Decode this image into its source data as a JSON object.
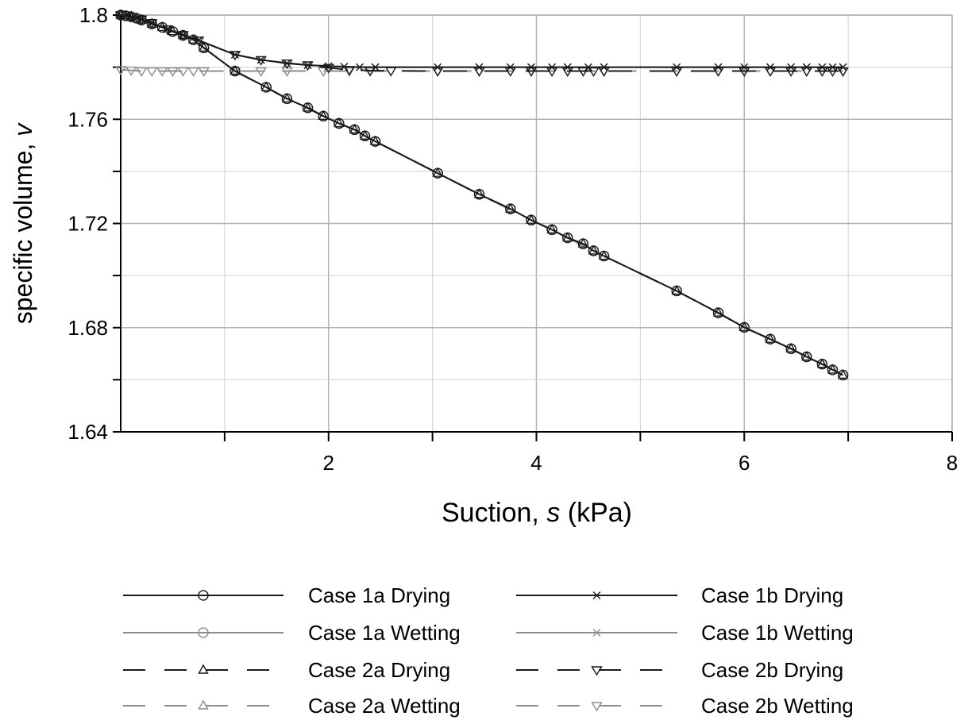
{
  "chart_data": {
    "type": "line",
    "xlabel_prefix": "Suction, ",
    "xlabel_symbol": "s",
    "xlabel_suffix": " (kPa)",
    "ylabel_prefix": "specific volume, ",
    "ylabel_symbol": "v",
    "xlim": [
      0,
      8
    ],
    "ylim": [
      1.64,
      1.8
    ],
    "x_ticks": [
      2,
      4,
      6,
      8
    ],
    "x_minor_ticks": [
      1,
      3,
      5,
      7
    ],
    "y_ticks": [
      1.64,
      1.68,
      1.72,
      1.76,
      1.8
    ],
    "y_minor_ticks": [
      1.66,
      1.7,
      1.74,
      1.78
    ],
    "grid": true,
    "legend_position": "bottom",
    "colors": {
      "dark": "#1a1a1a",
      "light": "#8c8c8c",
      "axis": "#000000",
      "grid": "#b3b3b3"
    },
    "series": [
      {
        "name": "Case 1a Drying",
        "color": "dark",
        "dash": "solid",
        "marker": "circle",
        "points": [
          [
            0,
            1.8
          ],
          [
            0.05,
            1.7997
          ],
          [
            0.1,
            1.7994
          ],
          [
            0.15,
            1.7988
          ],
          [
            0.2,
            1.7981
          ],
          [
            0.3,
            1.7966
          ],
          [
            0.4,
            1.7953
          ],
          [
            0.5,
            1.7937
          ],
          [
            0.6,
            1.7922
          ],
          [
            0.7,
            1.7905
          ],
          [
            0.8,
            1.7874
          ],
          [
            1.1,
            1.7785
          ],
          [
            1.4,
            1.7723
          ],
          [
            1.6,
            1.7679
          ],
          [
            1.8,
            1.7644
          ],
          [
            1.95,
            1.7612
          ],
          [
            2.1,
            1.7584
          ],
          [
            2.25,
            1.756
          ],
          [
            2.35,
            1.7536
          ],
          [
            2.45,
            1.7515
          ],
          [
            3.05,
            1.7393
          ],
          [
            3.45,
            1.7312
          ],
          [
            3.75,
            1.7256
          ],
          [
            3.95,
            1.7213
          ],
          [
            4.15,
            1.7176
          ],
          [
            4.3,
            1.7145
          ],
          [
            4.45,
            1.7122
          ],
          [
            4.55,
            1.7095
          ],
          [
            4.65,
            1.7075
          ],
          [
            5.35,
            1.6941
          ],
          [
            5.75,
            1.6857
          ],
          [
            6.0,
            1.6801
          ],
          [
            6.25,
            1.6756
          ],
          [
            6.45,
            1.6719
          ],
          [
            6.6,
            1.6688
          ],
          [
            6.75,
            1.666
          ],
          [
            6.85,
            1.6638
          ],
          [
            6.95,
            1.6618
          ]
        ]
      },
      {
        "name": "Case 1a Wetting",
        "color": "light",
        "dash": "solid",
        "marker": "circle",
        "points": [
          [
            6.95,
            1.6618
          ],
          [
            6.85,
            1.6638
          ],
          [
            6.75,
            1.666
          ],
          [
            6.6,
            1.6688
          ],
          [
            6.45,
            1.6719
          ],
          [
            6.25,
            1.6756
          ],
          [
            6.0,
            1.6801
          ],
          [
            5.75,
            1.6857
          ],
          [
            5.35,
            1.6941
          ],
          [
            4.65,
            1.7075
          ],
          [
            4.55,
            1.7095
          ],
          [
            4.45,
            1.7122
          ],
          [
            4.3,
            1.7145
          ],
          [
            4.15,
            1.7176
          ],
          [
            3.95,
            1.7213
          ],
          [
            3.75,
            1.7256
          ],
          [
            3.45,
            1.7312
          ],
          [
            3.05,
            1.7393
          ],
          [
            2.45,
            1.7515
          ],
          [
            2.35,
            1.7536
          ],
          [
            2.25,
            1.756
          ],
          [
            2.1,
            1.7584
          ],
          [
            1.95,
            1.7612
          ],
          [
            1.8,
            1.7644
          ],
          [
            1.6,
            1.7679
          ],
          [
            1.4,
            1.7723
          ],
          [
            1.1,
            1.7785
          ],
          [
            0.8,
            1.7874
          ]
        ]
      },
      {
        "name": "Case 1b Drying",
        "color": "dark",
        "dash": "solid",
        "marker": "x",
        "points": [
          [
            0,
            1.8
          ],
          [
            0.1,
            1.7993
          ],
          [
            0.2,
            1.7984
          ],
          [
            0.3,
            1.797
          ],
          [
            0.45,
            1.7946
          ],
          [
            0.6,
            1.7924
          ],
          [
            0.75,
            1.7903
          ],
          [
            1.1,
            1.7848
          ],
          [
            1.35,
            1.7828
          ],
          [
            1.6,
            1.7815
          ],
          [
            1.8,
            1.7808
          ],
          [
            2.0,
            1.7804
          ],
          [
            2.15,
            1.7802
          ],
          [
            2.3,
            1.78
          ],
          [
            2.45,
            1.78
          ],
          [
            3.05,
            1.78
          ],
          [
            3.45,
            1.78
          ],
          [
            3.75,
            1.78
          ],
          [
            3.95,
            1.78
          ],
          [
            4.15,
            1.78
          ],
          [
            4.3,
            1.78
          ],
          [
            4.5,
            1.78
          ],
          [
            4.65,
            1.78
          ],
          [
            5.35,
            1.78
          ],
          [
            5.75,
            1.78
          ],
          [
            6.0,
            1.78
          ],
          [
            6.25,
            1.78
          ],
          [
            6.45,
            1.78
          ],
          [
            6.6,
            1.78
          ],
          [
            6.75,
            1.78
          ],
          [
            6.85,
            1.78
          ],
          [
            6.95,
            1.78
          ]
        ]
      },
      {
        "name": "Case 1b Wetting",
        "color": "light",
        "dash": "solid",
        "marker": "x",
        "points": [
          [
            6.95,
            1.78
          ],
          [
            6.6,
            1.78
          ],
          [
            6.25,
            1.78
          ],
          [
            5.75,
            1.78
          ],
          [
            4.65,
            1.78
          ],
          [
            4.3,
            1.78
          ],
          [
            3.95,
            1.78
          ],
          [
            3.45,
            1.78
          ],
          [
            2.45,
            1.78
          ],
          [
            2.15,
            1.7802
          ],
          [
            1.8,
            1.7808
          ],
          [
            1.35,
            1.7828
          ],
          [
            1.1,
            1.7848
          ],
          [
            0.75,
            1.7903
          ],
          [
            0.45,
            1.7946
          ],
          [
            0.2,
            1.7984
          ],
          [
            0,
            1.8
          ]
        ]
      },
      {
        "name": "Case 2a Drying",
        "color": "dark",
        "dash": "dashed",
        "marker": "triangle-up",
        "points": [
          [
            0,
            1.8
          ],
          [
            0.05,
            1.7997
          ],
          [
            0.1,
            1.7994
          ],
          [
            0.15,
            1.7988
          ],
          [
            0.2,
            1.7981
          ],
          [
            0.3,
            1.7966
          ],
          [
            0.4,
            1.7953
          ],
          [
            0.5,
            1.7937
          ],
          [
            0.6,
            1.7922
          ],
          [
            0.7,
            1.7905
          ],
          [
            0.8,
            1.7874
          ],
          [
            1.1,
            1.7785
          ],
          [
            1.4,
            1.7723
          ],
          [
            1.6,
            1.7679
          ],
          [
            1.8,
            1.7644
          ],
          [
            1.95,
            1.7612
          ],
          [
            2.1,
            1.7584
          ],
          [
            2.25,
            1.756
          ],
          [
            2.35,
            1.7536
          ],
          [
            2.45,
            1.7515
          ],
          [
            3.05,
            1.7393
          ],
          [
            3.45,
            1.7312
          ],
          [
            3.75,
            1.7256
          ],
          [
            3.95,
            1.7213
          ],
          [
            4.15,
            1.7176
          ],
          [
            4.3,
            1.7145
          ],
          [
            4.45,
            1.7122
          ],
          [
            4.55,
            1.7095
          ],
          [
            4.65,
            1.7075
          ],
          [
            5.35,
            1.6941
          ],
          [
            5.75,
            1.6857
          ],
          [
            6.0,
            1.6801
          ],
          [
            6.25,
            1.6756
          ],
          [
            6.45,
            1.6719
          ],
          [
            6.6,
            1.6688
          ],
          [
            6.75,
            1.666
          ],
          [
            6.85,
            1.6638
          ],
          [
            6.95,
            1.6618
          ]
        ]
      },
      {
        "name": "Case 2a Wetting",
        "color": "light",
        "dash": "dashed",
        "marker": "triangle-up",
        "points": [
          [
            6.95,
            1.6618
          ],
          [
            6.75,
            1.666
          ],
          [
            6.45,
            1.6719
          ],
          [
            6.0,
            1.6801
          ],
          [
            5.35,
            1.6941
          ],
          [
            4.55,
            1.7095
          ],
          [
            4.3,
            1.7145
          ],
          [
            3.95,
            1.7213
          ],
          [
            3.45,
            1.7312
          ],
          [
            2.45,
            1.7515
          ],
          [
            2.25,
            1.756
          ],
          [
            1.95,
            1.7612
          ],
          [
            1.6,
            1.7679
          ],
          [
            1.1,
            1.7785
          ],
          [
            0.8,
            1.7874
          ]
        ]
      },
      {
        "name": "Case 2b Drying",
        "color": "dark",
        "dash": "dashed",
        "marker": "triangle-down",
        "points": [
          [
            0,
            1.8
          ],
          [
            0.1,
            1.7993
          ],
          [
            0.2,
            1.7984
          ],
          [
            0.3,
            1.797
          ],
          [
            0.45,
            1.7946
          ],
          [
            0.6,
            1.7924
          ],
          [
            0.75,
            1.7903
          ],
          [
            1.1,
            1.7848
          ],
          [
            1.35,
            1.7828
          ],
          [
            1.6,
            1.7815
          ],
          [
            1.8,
            1.7808
          ],
          [
            2.0,
            1.7798
          ],
          [
            2.2,
            1.779
          ],
          [
            2.4,
            1.7787
          ],
          [
            2.6,
            1.7786
          ],
          [
            3.05,
            1.7785
          ],
          [
            3.45,
            1.7785
          ],
          [
            3.75,
            1.7785
          ],
          [
            3.95,
            1.7785
          ],
          [
            4.15,
            1.7785
          ],
          [
            4.3,
            1.7785
          ],
          [
            4.45,
            1.7785
          ],
          [
            4.55,
            1.7785
          ],
          [
            4.65,
            1.7785
          ],
          [
            5.35,
            1.7785
          ],
          [
            5.75,
            1.7785
          ],
          [
            6.0,
            1.7785
          ],
          [
            6.25,
            1.7785
          ],
          [
            6.45,
            1.7785
          ],
          [
            6.6,
            1.7785
          ],
          [
            6.75,
            1.7785
          ],
          [
            6.85,
            1.7785
          ],
          [
            6.95,
            1.7785
          ]
        ]
      },
      {
        "name": "Case 2b Wetting",
        "color": "light",
        "dash": "dashed",
        "marker": "triangle-down",
        "points": [
          [
            6.95,
            1.7785
          ],
          [
            6.6,
            1.7785
          ],
          [
            6.25,
            1.7785
          ],
          [
            5.75,
            1.7785
          ],
          [
            5.35,
            1.7785
          ],
          [
            4.65,
            1.7785
          ],
          [
            4.3,
            1.7785
          ],
          [
            3.95,
            1.7785
          ],
          [
            3.45,
            1.7785
          ],
          [
            3.05,
            1.7785
          ],
          [
            2.4,
            1.7785
          ],
          [
            2.2,
            1.7785
          ],
          [
            1.95,
            1.7785
          ],
          [
            1.6,
            1.7785
          ],
          [
            1.35,
            1.7785
          ],
          [
            1.1,
            1.7785
          ],
          [
            0.8,
            1.7785
          ],
          [
            0.7,
            1.7785
          ],
          [
            0.6,
            1.7785
          ],
          [
            0.5,
            1.7785
          ],
          [
            0.4,
            1.7785
          ],
          [
            0.3,
            1.7785
          ],
          [
            0.2,
            1.7785
          ],
          [
            0.1,
            1.7788
          ],
          [
            0,
            1.779
          ]
        ]
      }
    ]
  }
}
